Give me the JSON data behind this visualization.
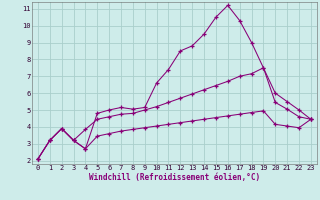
{
  "xlabel": "Windchill (Refroidissement éolien,°C)",
  "bg_color": "#ceecea",
  "grid_color": "#aacfcc",
  "line_color": "#880077",
  "xlim_min": -0.5,
  "xlim_max": 23.5,
  "ylim_min": 1.8,
  "ylim_max": 11.4,
  "x": [
    0,
    1,
    2,
    3,
    4,
    5,
    6,
    7,
    8,
    9,
    10,
    11,
    12,
    13,
    14,
    15,
    16,
    17,
    18,
    19,
    20,
    21,
    22,
    23
  ],
  "y_top": [
    2.1,
    3.2,
    3.9,
    3.2,
    2.7,
    4.8,
    5.0,
    5.15,
    5.05,
    5.15,
    6.6,
    7.4,
    8.5,
    8.8,
    9.5,
    10.5,
    11.2,
    10.3,
    9.0,
    7.5,
    6.0,
    5.5,
    5.0,
    4.45
  ],
  "y_mid": [
    2.1,
    3.2,
    3.9,
    3.2,
    3.85,
    4.45,
    4.6,
    4.75,
    4.8,
    5.0,
    5.2,
    5.45,
    5.7,
    5.95,
    6.2,
    6.45,
    6.7,
    7.0,
    7.15,
    7.5,
    5.45,
    5.05,
    4.6,
    4.45
  ],
  "y_bot": [
    2.1,
    3.2,
    3.9,
    3.2,
    2.7,
    3.45,
    3.6,
    3.75,
    3.85,
    3.95,
    4.05,
    4.15,
    4.25,
    4.35,
    4.45,
    4.55,
    4.65,
    4.75,
    4.85,
    4.95,
    4.15,
    4.05,
    3.95,
    4.45
  ],
  "yticks": [
    2,
    3,
    4,
    5,
    6,
    7,
    8,
    9,
    10,
    11
  ],
  "xticks": [
    0,
    1,
    2,
    3,
    4,
    5,
    6,
    7,
    8,
    9,
    10,
    11,
    12,
    13,
    14,
    15,
    16,
    17,
    18,
    19,
    20,
    21,
    22,
    23
  ]
}
